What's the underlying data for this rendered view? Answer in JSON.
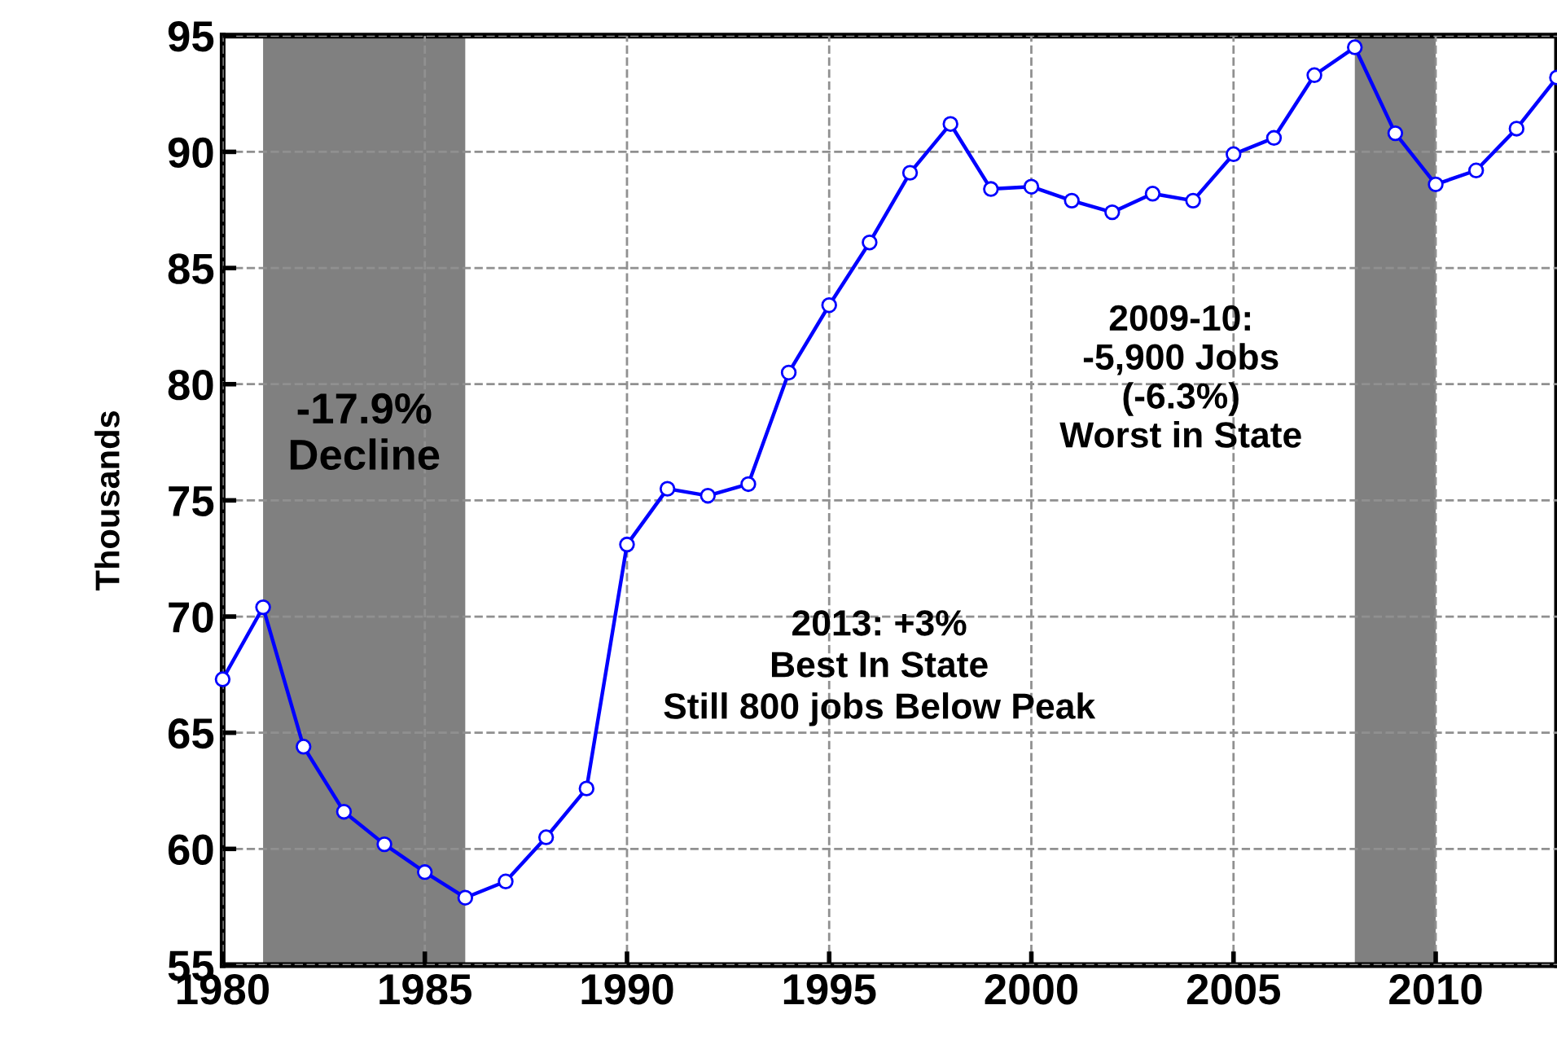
{
  "chart_data": {
    "type": "line",
    "ylabel": "Thousands",
    "x": [
      1980,
      1981,
      1982,
      1983,
      1984,
      1985,
      1986,
      1987,
      1988,
      1989,
      1990,
      1991,
      1992,
      1993,
      1994,
      1995,
      1996,
      1997,
      1998,
      1999,
      2000,
      2001,
      2002,
      2003,
      2004,
      2005,
      2006,
      2007,
      2008,
      2009,
      2010,
      2011,
      2012,
      2013
    ],
    "series": [
      {
        "color": "#0000ff",
        "values": [
          67.3,
          70.4,
          64.4,
          61.6,
          60.2,
          59.0,
          57.9,
          58.6,
          60.5,
          62.6,
          73.1,
          75.5,
          75.2,
          75.7,
          80.5,
          83.4,
          86.1,
          89.1,
          91.2,
          88.4,
          88.5,
          87.9,
          87.4,
          88.2,
          87.9,
          89.9,
          90.6,
          93.3,
          94.5,
          90.8,
          88.6,
          89.2,
          91.0,
          93.2
        ]
      }
    ],
    "xlim": [
      1980,
      2013
    ],
    "xticks": [
      1980,
      1985,
      1990,
      1995,
      2000,
      2005,
      2010
    ],
    "ylim": [
      55,
      95
    ],
    "yticks": [
      55,
      60,
      65,
      70,
      75,
      80,
      85,
      90,
      95
    ],
    "grid": true,
    "marker": "circle",
    "line_style": "solid",
    "bands": [
      {
        "axis": "x",
        "from": 1981,
        "to": 1986,
        "label": "-17.9%\nDecline",
        "color": "#808080"
      },
      {
        "axis": "x",
        "from": 2008,
        "to": 2010,
        "label": "2009-10:\n-5,900 Jobs\n(-6.3%)\nWorst in State",
        "color": "#808080"
      }
    ],
    "annotations": [
      "2013: +3%\nBest In State\nStill 800 jobs Below Peak"
    ]
  }
}
